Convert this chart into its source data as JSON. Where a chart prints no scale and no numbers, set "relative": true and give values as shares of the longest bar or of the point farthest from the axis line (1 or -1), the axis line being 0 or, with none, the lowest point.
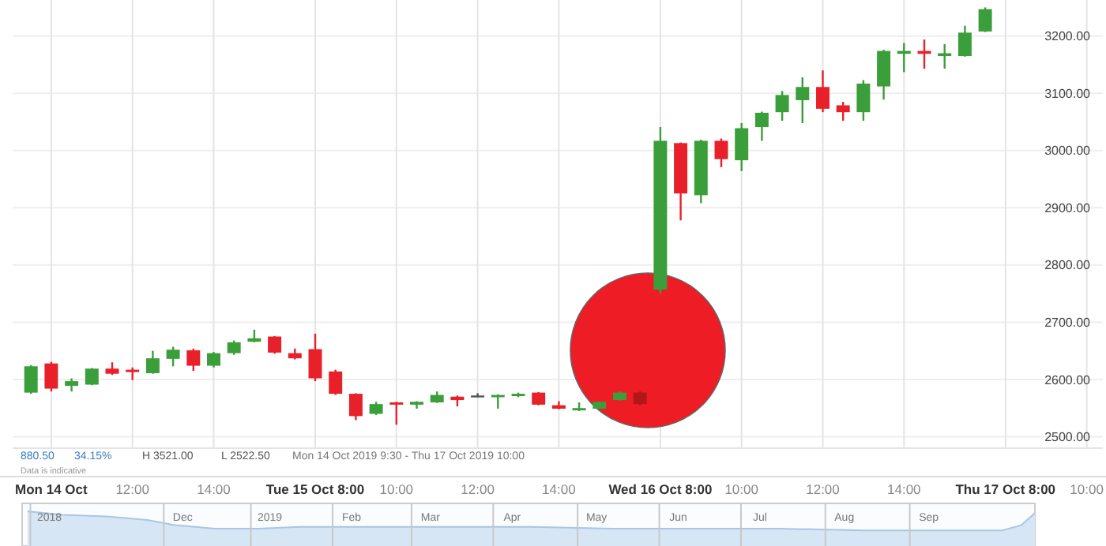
{
  "chart_data": [
    {
      "type": "candlestick",
      "categories": [
        null,
        "Mon 14 Oct",
        null,
        null,
        null,
        "12:00",
        null,
        null,
        null,
        "14:00",
        null,
        null,
        null,
        null,
        "Tue 15 Oct 8:00",
        null,
        null,
        null,
        "10:00",
        null,
        null,
        null,
        "12:00",
        null,
        null,
        null,
        "14:00",
        null,
        null,
        null,
        null,
        "Wed 16 Oct 8:00",
        null,
        null,
        null,
        "10:00",
        null,
        null,
        null,
        "12:00",
        null,
        null,
        null,
        "14:00",
        null,
        null,
        null,
        null,
        "Thu 17 Oct 8:00",
        null,
        null,
        null,
        "10:00"
      ],
      "ohlc": [
        [
          2577,
          2625,
          2575,
          2623
        ],
        [
          2628,
          2631,
          2579,
          2584
        ],
        [
          2589,
          2602,
          2579,
          2597
        ],
        [
          2591,
          2620,
          2590,
          2619
        ],
        [
          2619,
          2630,
          2608,
          2610
        ],
        [
          2617,
          2621,
          2599,
          2613
        ],
        [
          2611,
          2650,
          2610,
          2637
        ],
        [
          2636,
          2657,
          2623,
          2652
        ],
        [
          2651,
          2654,
          2615,
          2624
        ],
        [
          2624,
          2648,
          2621,
          2646
        ],
        [
          2646,
          2668,
          2643,
          2665
        ],
        [
          2666,
          2687,
          2665,
          2672
        ],
        [
          2675,
          2676,
          2645,
          2647
        ],
        [
          2646,
          2654,
          2635,
          2637
        ],
        [
          2653,
          2680,
          2597,
          2602
        ],
        [
          2614,
          2617,
          2573,
          2575
        ],
        [
          2575,
          2576,
          2529,
          2536
        ],
        [
          2540,
          2561,
          2538,
          2557
        ],
        [
          2560,
          2561,
          2521,
          2556
        ],
        [
          2556,
          2562,
          2549,
          2561
        ],
        [
          2560,
          2579,
          2559,
          2573
        ],
        [
          2570,
          2572,
          2553,
          2564
        ],
        [
          2572,
          2576,
          2569,
          2572
        ],
        [
          2569,
          2574,
          2549,
          2573
        ],
        [
          2571,
          2577,
          2569,
          2575
        ],
        [
          2577,
          2578,
          2555,
          2556
        ],
        [
          2555,
          2562,
          2548,
          2549
        ],
        [
          2546,
          2560,
          2545,
          2550
        ],
        [
          2549,
          2562,
          2548,
          2561
        ],
        [
          2564,
          2579,
          2563,
          2577
        ],
        [
          2577,
          2579,
          2555,
          2557
        ],
        [
          2757,
          3041,
          2750,
          3017
        ],
        [
          3013,
          3014,
          2878,
          2925
        ],
        [
          2922,
          3019,
          2908,
          3017
        ],
        [
          3017,
          3021,
          2971,
          2985
        ],
        [
          2983,
          3048,
          2964,
          3039
        ],
        [
          3041,
          3068,
          3017,
          3066
        ],
        [
          3067,
          3104,
          3052,
          3097
        ],
        [
          3088,
          3128,
          3048,
          3111
        ],
        [
          3111,
          3140,
          3067,
          3073
        ],
        [
          3079,
          3085,
          3052,
          3067
        ],
        [
          3067,
          3123,
          3052,
          3117
        ],
        [
          3112,
          3176,
          3089,
          3174
        ],
        [
          3169,
          3188,
          3137,
          3174
        ],
        [
          3174,
          3194,
          3143,
          3169
        ],
        [
          3165,
          3186,
          3143,
          3170
        ],
        [
          3165,
          3218,
          3164,
          3206
        ],
        [
          3208,
          3250,
          3207,
          3247
        ],
        null,
        null,
        null,
        null,
        null
      ],
      "colors": [
        "#3a9e3a",
        "#e8202a",
        "#3a9e3a",
        "#3a9e3a",
        "#e8202a",
        "#e8202a",
        "#3a9e3a",
        "#3a9e3a",
        "#e8202a",
        "#3a9e3a",
        "#3a9e3a",
        "#3a9e3a",
        "#e8202a",
        "#e8202a",
        "#e8202a",
        "#e8202a",
        "#e8202a",
        "#3a9e3a",
        "#e8202a",
        "#3a9e3a",
        "#3a9e3a",
        "#e8202a",
        "#555555",
        "#3a9e3a",
        "#3a9e3a",
        "#e8202a",
        "#e8202a",
        "#3a9e3a",
        "#3a9e3a",
        "#3a9e3a",
        "#b01818",
        "#3a9e3a",
        "#e8202a",
        "#3a9e3a",
        "#e8202a",
        "#3a9e3a",
        "#3a9e3a",
        "#3a9e3a",
        "#3a9e3a",
        "#e8202a",
        "#e8202a",
        "#3a9e3a",
        "#3a9e3a",
        "#3a9e3a",
        "#e8202a",
        "#3a9e3a",
        "#3a9e3a",
        "#3a9e3a",
        null,
        null,
        null,
        null,
        null
      ],
      "ylim": [
        2480,
        3263
      ],
      "yticks": [
        {
          "value": 2500,
          "label": "2500.00"
        },
        {
          "value": 2600,
          "label": "2600.00"
        },
        {
          "value": 2700,
          "label": "2700.00"
        },
        {
          "value": 2800,
          "label": "2800.00"
        },
        {
          "value": 2900,
          "label": "2900.00"
        },
        {
          "value": 3000,
          "label": "3000.00"
        },
        {
          "value": 3100,
          "label": "3100.00"
        },
        {
          "value": 3200,
          "label": "3200.00"
        }
      ],
      "grid": true,
      "annotations": [
        "880.50",
        "34.15%",
        "H 3521.00",
        "L 2522.50",
        "Mon 14 Oct 2019 9:30 - Thu 17 Oct 2019 10:00",
        "Data is indicative"
      ]
    },
    {
      "type": "area",
      "relative": true,
      "color": "#d6e6f5",
      "tick_labels": "x",
      "x": [
        "2018-10-12",
        "2018-10-25",
        "2018-11-10",
        "2018-11-25",
        "2018-12-05",
        "2018-12-20",
        "2019-01-05",
        "2019-01-20",
        "2019-02-15",
        "2019-03-15",
        "2019-04-15",
        "2019-05-15",
        "2019-06-15",
        "2019-07-15",
        "2019-08-15",
        "2019-09-15",
        "2019-10-05",
        "2019-10-12",
        "2019-10-17"
      ],
      "values": [
        1,
        0.9,
        0.85,
        0.75,
        0.6,
        0.5,
        0.5,
        0.55,
        0.55,
        0.55,
        0.55,
        0.5,
        0.5,
        0.5,
        0.45,
        0.45,
        0.45,
        0.6,
        0.95
      ],
      "xlim": [
        "2018-10-10",
        "2019-10-17"
      ],
      "xticks": [
        {
          "value": "2018-10-20",
          "label": "2018"
        },
        {
          "value": "2018-12-08",
          "label": "Dec"
        },
        {
          "value": "2019-01-09",
          "label": "2019"
        },
        {
          "value": "2019-02-08",
          "label": "Feb"
        },
        {
          "value": "2019-03-09",
          "label": "Mar"
        },
        {
          "value": "2019-04-08",
          "label": "Apr"
        },
        {
          "value": "2019-05-09",
          "label": "May"
        },
        {
          "value": "2019-06-08",
          "label": "Jun"
        },
        {
          "value": "2019-07-08",
          "label": "Jul"
        },
        {
          "value": "2019-08-08",
          "label": "Aug"
        },
        {
          "value": "2019-09-08",
          "label": "Sep"
        }
      ]
    }
  ]
}
